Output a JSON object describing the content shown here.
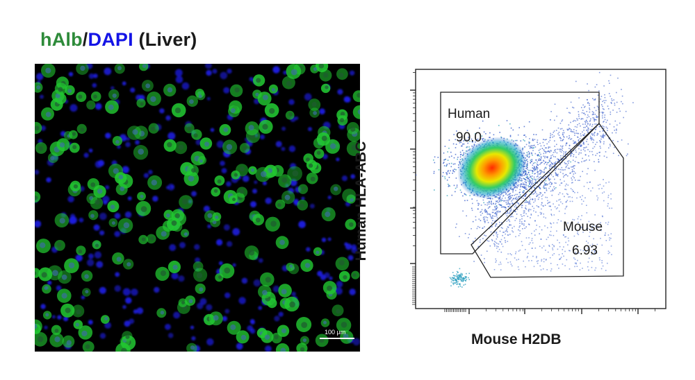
{
  "title": {
    "part1": "hAlb",
    "sep": "/",
    "part2": "DAPI",
    "part3": " (Liver)",
    "color1": "#2e8b3a",
    "color2": "#1414e6"
  },
  "micrograph": {
    "scale_bar_label": "100 µm",
    "channels": [
      {
        "name": "hAlb",
        "color": "#22c832"
      },
      {
        "name": "DAPI",
        "color": "#1e1ee6"
      }
    ]
  },
  "flow": {
    "x_axis_label": "Mouse H2DB",
    "y_axis_label": "Human HLA-ABC",
    "gates": [
      {
        "name": "Human",
        "value": "90.0"
      },
      {
        "name": "Mouse",
        "value": "6.93"
      }
    ]
  }
}
